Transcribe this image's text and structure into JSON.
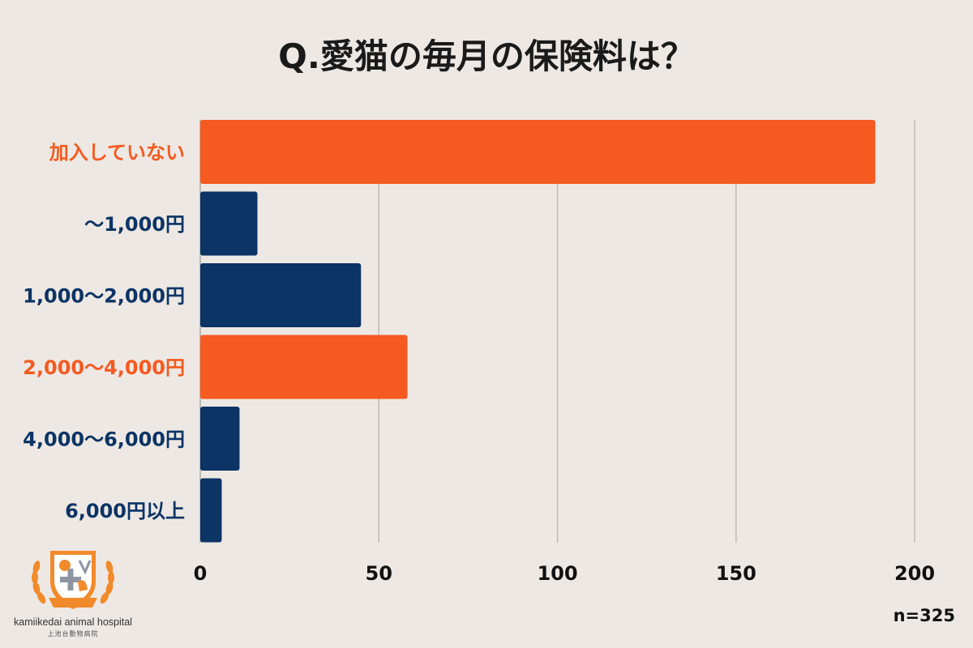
{
  "chart_data": {
    "type": "bar",
    "orientation": "horizontal",
    "title": "Q.愛猫の毎月の保険料は？",
    "categories": [
      "加入していない",
      "〜1,000円",
      "1,000〜2,000円",
      "2,000〜4,000円",
      "4,000〜6,000円",
      "6,000円以上"
    ],
    "values": [
      189,
      16,
      45,
      58,
      11,
      6
    ],
    "highlight": [
      true,
      false,
      false,
      true,
      false,
      false
    ],
    "xlim": [
      0,
      200
    ],
    "xticks": [
      0,
      50,
      100,
      150,
      200
    ],
    "grid": true,
    "annotation": "n=325",
    "colors": {
      "highlight": "#f55a20",
      "default": "#0c3464",
      "background": "#ede8e4"
    }
  },
  "logo": {
    "icon": "hospital-crest-icon",
    "ribbon_text": "kamiikedai",
    "name_en": "kamiikedai animal hospital",
    "name_jp": "上池台動物病院"
  }
}
